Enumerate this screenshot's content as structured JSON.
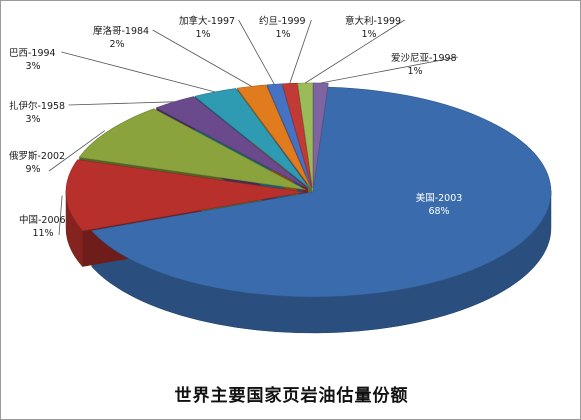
{
  "chart_data": {
    "type": "pie",
    "title": "世界主要国家页岩油估量份额",
    "categories": [
      "美国-2003",
      "中国-2006",
      "俄罗斯-2002",
      "扎伊尔-1958",
      "巴西-1994",
      "摩洛哥-1984",
      "加拿大-1997",
      "约旦-1999",
      "意大利-1999",
      "爱沙尼亚-1998"
    ],
    "values": [
      68,
      11,
      9,
      3,
      3,
      2,
      1,
      1,
      1,
      1
    ],
    "value_labels": [
      "68%",
      "11%",
      "9%",
      "3%",
      "3%",
      "2%",
      "1%",
      "1%",
      "1%",
      "1%"
    ],
    "colors": [
      "#3a6cad",
      "#b8302c",
      "#8ba33d",
      "#6a4a8c",
      "#2e9bb3",
      "#e07b1e",
      "#4672c4",
      "#c23a36",
      "#9bbb59",
      "#7f64a2"
    ],
    "legend": "none",
    "style": "3d-exploded"
  }
}
